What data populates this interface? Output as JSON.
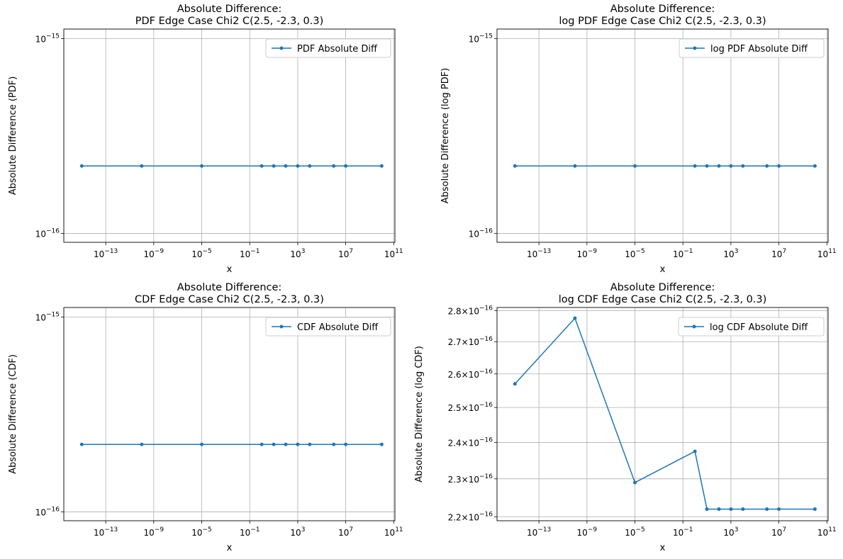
{
  "figure": {
    "line_color": "#1f77b4",
    "grid_color": "#b0b0b0"
  },
  "chart_data": [
    {
      "type": "line",
      "title_line1": "Absolute Difference:",
      "title_line2": "PDF Edge Case Chi2 C(2.5, -2.3, 0.3)",
      "xlabel": "x",
      "ylabel": "Absolute Difference (PDF)",
      "xscale": "log",
      "yscale": "log",
      "grid": true,
      "legend_placement": "top-right",
      "xlim": [
        3.2e-17,
        126000000000.0
      ],
      "ylim": [
        9e-17,
        1.12e-15
      ],
      "x_ticks": [
        {
          "value": 1e-13,
          "base": "10",
          "exp": "−13"
        },
        {
          "value": 1e-09,
          "base": "10",
          "exp": "−9"
        },
        {
          "value": 1e-05,
          "base": "10",
          "exp": "−5"
        },
        {
          "value": 0.1,
          "base": "10",
          "exp": "−1"
        },
        {
          "value": 1000,
          "base": "10",
          "exp": "3"
        },
        {
          "value": 10000000.0,
          "base": "10",
          "exp": "7"
        },
        {
          "value": 100000000000.0,
          "base": "10",
          "exp": "11"
        }
      ],
      "y_ticks": [
        {
          "value": 1e-16,
          "base": "10",
          "exp": "−16"
        },
        {
          "value": 1e-15,
          "base": "10",
          "exp": "−15"
        }
      ],
      "series": [
        {
          "name": "PDF Absolute Diff",
          "x": [
            1e-15,
            1e-10,
            1e-05,
            1,
            10,
            100,
            1000,
            10000,
            1000000.0,
            10000000.0,
            10000000000.0
          ],
          "y": [
            2.22e-16,
            2.22e-16,
            2.22e-16,
            2.22e-16,
            2.22e-16,
            2.22e-16,
            2.22e-16,
            2.22e-16,
            2.22e-16,
            2.22e-16,
            2.22e-16
          ]
        }
      ]
    },
    {
      "type": "line",
      "title_line1": "Absolute Difference:",
      "title_line2": "log PDF Edge Case Chi2 C(2.5, -2.3, 0.3)",
      "xlabel": "x",
      "ylabel": "Absolute Difference (log PDF)",
      "xscale": "log",
      "yscale": "log",
      "grid": true,
      "legend_placement": "top-right",
      "xlim": [
        3.2e-17,
        126000000000.0
      ],
      "ylim": [
        9e-17,
        1.12e-15
      ],
      "x_ticks": [
        {
          "value": 1e-13,
          "base": "10",
          "exp": "−13"
        },
        {
          "value": 1e-09,
          "base": "10",
          "exp": "−9"
        },
        {
          "value": 1e-05,
          "base": "10",
          "exp": "−5"
        },
        {
          "value": 0.1,
          "base": "10",
          "exp": "−1"
        },
        {
          "value": 1000,
          "base": "10",
          "exp": "3"
        },
        {
          "value": 10000000.0,
          "base": "10",
          "exp": "7"
        },
        {
          "value": 100000000000.0,
          "base": "10",
          "exp": "11"
        }
      ],
      "y_ticks": [
        {
          "value": 1e-16,
          "base": "10",
          "exp": "−16"
        },
        {
          "value": 1e-15,
          "base": "10",
          "exp": "−15"
        }
      ],
      "series": [
        {
          "name": "log PDF Absolute Diff",
          "x": [
            1e-15,
            1e-10,
            1e-05,
            1,
            10,
            100,
            1000,
            10000,
            1000000.0,
            10000000.0,
            10000000000.0
          ],
          "y": [
            2.22e-16,
            2.22e-16,
            2.22e-16,
            2.22e-16,
            2.22e-16,
            2.22e-16,
            2.22e-16,
            2.22e-16,
            2.22e-16,
            2.22e-16,
            2.22e-16
          ]
        }
      ]
    },
    {
      "type": "line",
      "title_line1": "Absolute Difference:",
      "title_line2": "CDF Edge Case Chi2 C(2.5, -2.3, 0.3)",
      "xlabel": "x",
      "ylabel": "Absolute Difference (CDF)",
      "xscale": "log",
      "yscale": "log",
      "grid": true,
      "legend_placement": "top-right",
      "xlim": [
        3.2e-17,
        126000000000.0
      ],
      "ylim": [
        9e-17,
        1.12e-15
      ],
      "x_ticks": [
        {
          "value": 1e-13,
          "base": "10",
          "exp": "−13"
        },
        {
          "value": 1e-09,
          "base": "10",
          "exp": "−9"
        },
        {
          "value": 1e-05,
          "base": "10",
          "exp": "−5"
        },
        {
          "value": 0.1,
          "base": "10",
          "exp": "−1"
        },
        {
          "value": 1000,
          "base": "10",
          "exp": "3"
        },
        {
          "value": 10000000.0,
          "base": "10",
          "exp": "7"
        },
        {
          "value": 100000000000.0,
          "base": "10",
          "exp": "11"
        }
      ],
      "y_ticks": [
        {
          "value": 1e-16,
          "base": "10",
          "exp": "−16"
        },
        {
          "value": 1e-15,
          "base": "10",
          "exp": "−15"
        }
      ],
      "series": [
        {
          "name": "CDF Absolute Diff",
          "x": [
            1e-15,
            1e-10,
            1e-05,
            1,
            10,
            100,
            1000,
            10000,
            1000000.0,
            10000000.0,
            10000000000.0
          ],
          "y": [
            2.22e-16,
            2.22e-16,
            2.22e-16,
            2.22e-16,
            2.22e-16,
            2.22e-16,
            2.22e-16,
            2.22e-16,
            2.22e-16,
            2.22e-16,
            2.22e-16
          ]
        }
      ]
    },
    {
      "type": "line",
      "title_line1": "Absolute Difference:",
      "title_line2": "log CDF Edge Case Chi2 C(2.5, -2.3, 0.3)",
      "xlabel": "x",
      "ylabel": "Absolute Difference (log CDF)",
      "xscale": "log",
      "yscale": "log",
      "grid": true,
      "legend_placement": "top-right",
      "xlim": [
        3.2e-17,
        126000000000.0
      ],
      "ylim": [
        2.19e-16,
        2.81e-16
      ],
      "x_ticks": [
        {
          "value": 1e-13,
          "base": "10",
          "exp": "−13"
        },
        {
          "value": 1e-09,
          "base": "10",
          "exp": "−9"
        },
        {
          "value": 1e-05,
          "base": "10",
          "exp": "−5"
        },
        {
          "value": 0.1,
          "base": "10",
          "exp": "−1"
        },
        {
          "value": 1000,
          "base": "10",
          "exp": "3"
        },
        {
          "value": 10000000.0,
          "base": "10",
          "exp": "7"
        },
        {
          "value": 100000000000.0,
          "base": "10",
          "exp": "11"
        }
      ],
      "y_ticks": [
        {
          "value": 2.2e-16,
          "base": "2.2×10",
          "exp": "−16"
        },
        {
          "value": 2.3e-16,
          "base": "2.3×10",
          "exp": "−16"
        },
        {
          "value": 2.4e-16,
          "base": "2.4×10",
          "exp": "−16"
        },
        {
          "value": 2.5e-16,
          "base": "2.5×10",
          "exp": "−16"
        },
        {
          "value": 2.6e-16,
          "base": "2.6×10",
          "exp": "−16"
        },
        {
          "value": 2.7e-16,
          "base": "2.7×10",
          "exp": "−16"
        },
        {
          "value": 2.8e-16,
          "base": "2.8×10",
          "exp": "−16"
        }
      ],
      "series": [
        {
          "name": "log CDF Absolute Diff",
          "x": [
            1e-15,
            1e-10,
            1e-05,
            1,
            10,
            100,
            1000,
            10000,
            1000000.0,
            10000000.0,
            10000000000.0
          ],
          "y": [
            2.57e-16,
            2.775e-16,
            2.29e-16,
            2.375e-16,
            2.22e-16,
            2.22e-16,
            2.22e-16,
            2.22e-16,
            2.22e-16,
            2.22e-16,
            2.22e-16
          ]
        }
      ]
    }
  ]
}
